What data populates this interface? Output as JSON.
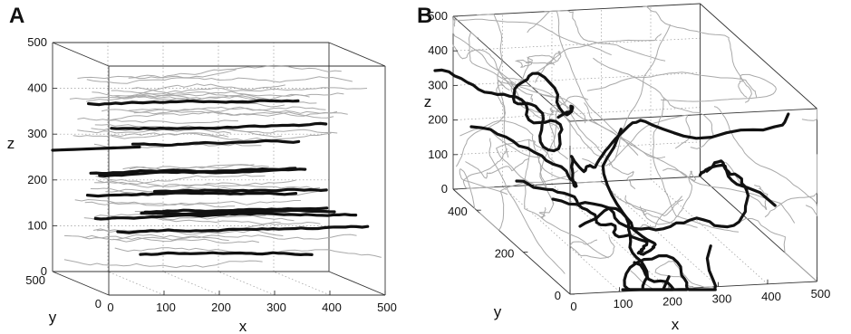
{
  "chart_data": [
    {
      "type": "line",
      "panel": "A",
      "panel_label": "A",
      "view": "3d",
      "xlabel": "x",
      "ylabel": "y",
      "zlabel": "z",
      "xlim": [
        0,
        500
      ],
      "ylim": [
        0,
        500
      ],
      "zlim": [
        0,
        500
      ],
      "xticks": [
        "0",
        "100",
        "200",
        "300",
        "400",
        "500"
      ],
      "yticks": [
        "0",
        "500"
      ],
      "zticks": [
        "0",
        "100",
        "200",
        "300",
        "400",
        "500"
      ],
      "grid": true,
      "highlighted_paths_z_levels": [
        395,
        330,
        300,
        240,
        225,
        210,
        195,
        175,
        160,
        145,
        125,
        65
      ],
      "background_paths_count": 40,
      "description_of_series": "thin gray trajectories run roughly parallel to the x-axis; thick black trajectories are highlighted examples"
    },
    {
      "type": "line",
      "panel": "B",
      "panel_label": "B",
      "view": "3d",
      "xlabel": "x",
      "ylabel": "y",
      "zlabel": "z",
      "xlim": [
        0,
        500
      ],
      "ylim": [
        0,
        500
      ],
      "zlim": [
        0,
        500
      ],
      "xticks": [
        "0",
        "100",
        "200",
        "300",
        "400",
        "500"
      ],
      "yticks": [
        "0",
        "200",
        "400"
      ],
      "zticks": [
        "0",
        "100",
        "200",
        "300",
        "400",
        "500"
      ],
      "grid": true,
      "background_paths_count": 45
    }
  ]
}
